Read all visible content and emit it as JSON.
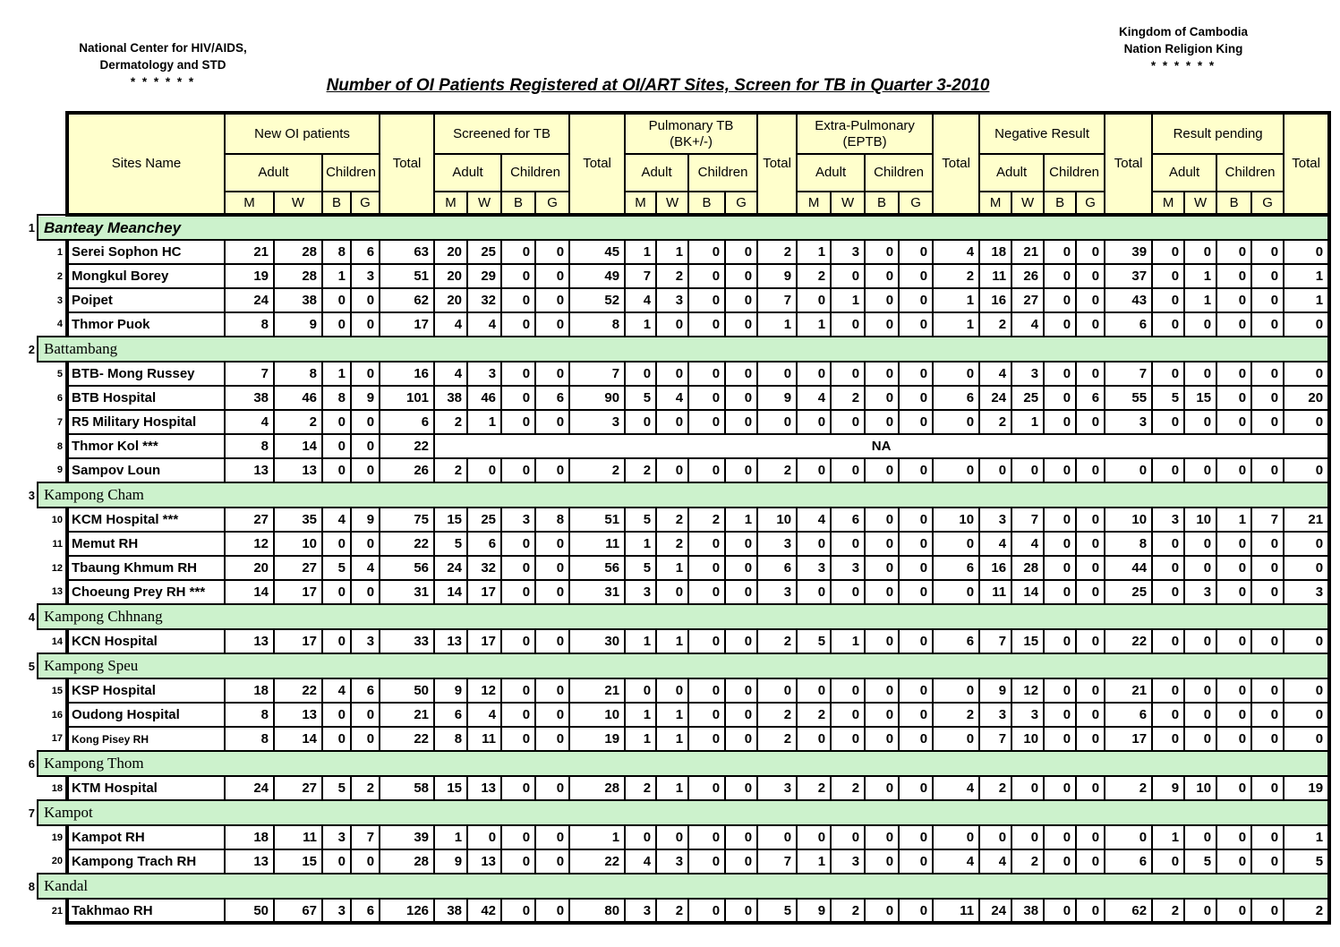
{
  "page": {
    "org": [
      "National Center for HIV/AIDS,",
      "Dermatology and STD",
      "* * * * * *"
    ],
    "kingdom": [
      "Kingdom of Cambodia",
      "Nation Religion King",
      "* * * * * *"
    ],
    "title": "Number of OI Patients Registered at OI/ART Sites, Screen for TB in Quarter 3-2010"
  },
  "table": {
    "sites_header": "Sites Name",
    "total_label": "Total",
    "adult_label": "Adult",
    "children_label": "Children",
    "sex_labels": [
      "M",
      "W",
      "B",
      "G"
    ],
    "segments": [
      {
        "line1": "New OI patients",
        "line2": ""
      },
      {
        "line1": "Screened for TB",
        "line2": ""
      },
      {
        "line1": "Pulmonary TB",
        "line2": "(BK+/-)"
      },
      {
        "line1": "Extra-Pulmonary",
        "line2": "(EPTB)"
      },
      {
        "line1": "Negative Result",
        "line2": ""
      },
      {
        "line1": "Result pending",
        "line2": ""
      }
    ],
    "na_text": "NA",
    "provinces": [
      {
        "num": 1,
        "name": "Banteay Meanchey",
        "style": "italic",
        "sites": [
          {
            "num": 1,
            "name": "Serei Sophon HC",
            "new_oi": [
              21,
              28,
              8,
              6,
              63
            ],
            "screened": [
              20,
              25,
              0,
              0,
              45
            ],
            "ptb": [
              1,
              1,
              0,
              0,
              2
            ],
            "eptb": [
              1,
              3,
              0,
              0,
              4
            ],
            "negative": [
              18,
              21,
              0,
              0,
              39
            ],
            "pending": [
              0,
              0,
              0,
              0,
              0
            ]
          },
          {
            "num": 2,
            "name": "Mongkul Borey",
            "new_oi": [
              19,
              28,
              1,
              3,
              51
            ],
            "screened": [
              20,
              29,
              0,
              0,
              49
            ],
            "ptb": [
              7,
              2,
              0,
              0,
              9
            ],
            "eptb": [
              2,
              0,
              0,
              0,
              2
            ],
            "negative": [
              11,
              26,
              0,
              0,
              37
            ],
            "pending": [
              0,
              1,
              0,
              0,
              1
            ]
          },
          {
            "num": 3,
            "name": "Poipet",
            "new_oi": [
              24,
              38,
              0,
              0,
              62
            ],
            "screened": [
              20,
              32,
              0,
              0,
              52
            ],
            "ptb": [
              4,
              3,
              0,
              0,
              7
            ],
            "eptb": [
              0,
              1,
              0,
              0,
              1
            ],
            "negative": [
              16,
              27,
              0,
              0,
              43
            ],
            "pending": [
              0,
              1,
              0,
              0,
              1
            ]
          },
          {
            "num": 4,
            "name": "Thmor Puok",
            "new_oi": [
              8,
              9,
              0,
              0,
              17
            ],
            "screened": [
              4,
              4,
              0,
              0,
              8
            ],
            "ptb": [
              1,
              0,
              0,
              0,
              1
            ],
            "eptb": [
              1,
              0,
              0,
              0,
              1
            ],
            "negative": [
              2,
              4,
              0,
              0,
              6
            ],
            "pending": [
              0,
              0,
              0,
              0,
              0
            ]
          }
        ]
      },
      {
        "num": 2,
        "name": "Battambang",
        "style": "hand",
        "sites": [
          {
            "num": 5,
            "name": "BTB- Mong Russey",
            "new_oi": [
              7,
              8,
              1,
              0,
              16
            ],
            "screened": [
              4,
              3,
              0,
              0,
              7
            ],
            "ptb": [
              0,
              0,
              0,
              0,
              0
            ],
            "eptb": [
              0,
              0,
              0,
              0,
              0
            ],
            "negative": [
              4,
              3,
              0,
              0,
              7
            ],
            "pending": [
              0,
              0,
              0,
              0,
              0
            ]
          },
          {
            "num": 6,
            "name": "BTB Hospital",
            "new_oi": [
              38,
              46,
              8,
              9,
              101
            ],
            "screened": [
              38,
              46,
              0,
              6,
              90
            ],
            "ptb": [
              5,
              4,
              0,
              0,
              9
            ],
            "eptb": [
              4,
              2,
              0,
              0,
              6
            ],
            "negative": [
              24,
              25,
              0,
              6,
              55
            ],
            "pending": [
              5,
              15,
              0,
              0,
              20
            ]
          },
          {
            "num": 7,
            "name": "R5 Military Hospital",
            "new_oi": [
              4,
              2,
              0,
              0,
              6
            ],
            "screened": [
              2,
              1,
              0,
              0,
              3
            ],
            "ptb": [
              0,
              0,
              0,
              0,
              0
            ],
            "eptb": [
              0,
              0,
              0,
              0,
              0
            ],
            "negative": [
              2,
              1,
              0,
              0,
              3
            ],
            "pending": [
              0,
              0,
              0,
              0,
              0
            ]
          },
          {
            "num": 8,
            "name": "Thmor Kol ***",
            "na": true,
            "new_oi": [
              8,
              14,
              0,
              0,
              22
            ]
          },
          {
            "num": 9,
            "name": "Sampov Loun",
            "new_oi": [
              13,
              13,
              0,
              0,
              26
            ],
            "screened": [
              2,
              0,
              0,
              0,
              2
            ],
            "ptb": [
              2,
              0,
              0,
              0,
              2
            ],
            "eptb": [
              0,
              0,
              0,
              0,
              0
            ],
            "negative": [
              0,
              0,
              0,
              0,
              0
            ],
            "pending": [
              0,
              0,
              0,
              0,
              0
            ]
          }
        ]
      },
      {
        "num": 3,
        "name": "Kampong Cham",
        "style": "hand",
        "sites": [
          {
            "num": 10,
            "name": "KCM Hospital ***",
            "new_oi": [
              27,
              35,
              4,
              9,
              75
            ],
            "screened": [
              15,
              25,
              3,
              8,
              51
            ],
            "ptb": [
              5,
              2,
              2,
              1,
              10
            ],
            "eptb": [
              4,
              6,
              0,
              0,
              10
            ],
            "negative": [
              3,
              7,
              0,
              0,
              10
            ],
            "pending": [
              3,
              10,
              1,
              7,
              21
            ]
          },
          {
            "num": 11,
            "name": "Memut RH",
            "new_oi": [
              12,
              10,
              0,
              0,
              22
            ],
            "screened": [
              5,
              6,
              0,
              0,
              11
            ],
            "ptb": [
              1,
              2,
              0,
              0,
              3
            ],
            "eptb": [
              0,
              0,
              0,
              0,
              0
            ],
            "negative": [
              4,
              4,
              0,
              0,
              8
            ],
            "pending": [
              0,
              0,
              0,
              0,
              0
            ]
          },
          {
            "num": 12,
            "name": "Tbaung Khmum RH",
            "new_oi": [
              20,
              27,
              5,
              4,
              56
            ],
            "screened": [
              24,
              32,
              0,
              0,
              56
            ],
            "ptb": [
              5,
              1,
              0,
              0,
              6
            ],
            "eptb": [
              3,
              3,
              0,
              0,
              6
            ],
            "negative": [
              16,
              28,
              0,
              0,
              44
            ],
            "pending": [
              0,
              0,
              0,
              0,
              0
            ]
          },
          {
            "num": 13,
            "name": "Choeung Prey RH ***",
            "new_oi": [
              14,
              17,
              0,
              0,
              31
            ],
            "screened": [
              14,
              17,
              0,
              0,
              31
            ],
            "ptb": [
              3,
              0,
              0,
              0,
              3
            ],
            "eptb": [
              0,
              0,
              0,
              0,
              0
            ],
            "negative": [
              11,
              14,
              0,
              0,
              25
            ],
            "pending": [
              0,
              3,
              0,
              0,
              3
            ]
          }
        ]
      },
      {
        "num": 4,
        "name": "Kampong Chhnang",
        "style": "hand",
        "sites": [
          {
            "num": 14,
            "name": "KCN Hospital",
            "new_oi": [
              13,
              17,
              0,
              3,
              33
            ],
            "screened": [
              13,
              17,
              0,
              0,
              30
            ],
            "ptb": [
              1,
              1,
              0,
              0,
              2
            ],
            "eptb": [
              5,
              1,
              0,
              0,
              6
            ],
            "negative": [
              7,
              15,
              0,
              0,
              22
            ],
            "pending": [
              0,
              0,
              0,
              0,
              0
            ]
          }
        ]
      },
      {
        "num": 5,
        "name": "Kampong Speu",
        "style": "hand",
        "sites": [
          {
            "num": 15,
            "name": "KSP Hospital",
            "new_oi": [
              18,
              22,
              4,
              6,
              50
            ],
            "screened": [
              9,
              12,
              0,
              0,
              21
            ],
            "ptb": [
              0,
              0,
              0,
              0,
              0
            ],
            "eptb": [
              0,
              0,
              0,
              0,
              0
            ],
            "negative": [
              9,
              12,
              0,
              0,
              21
            ],
            "pending": [
              0,
              0,
              0,
              0,
              0
            ]
          },
          {
            "num": 16,
            "name": "Oudong Hospital",
            "new_oi": [
              8,
              13,
              0,
              0,
              21
            ],
            "screened": [
              6,
              4,
              0,
              0,
              10
            ],
            "ptb": [
              1,
              1,
              0,
              0,
              2
            ],
            "eptb": [
              2,
              0,
              0,
              0,
              2
            ],
            "negative": [
              3,
              3,
              0,
              0,
              6
            ],
            "pending": [
              0,
              0,
              0,
              0,
              0
            ]
          },
          {
            "num": 17,
            "name": "Kong Pisey RH",
            "small": true,
            "new_oi": [
              8,
              14,
              0,
              0,
              22
            ],
            "screened": [
              8,
              11,
              0,
              0,
              19
            ],
            "ptb": [
              1,
              1,
              0,
              0,
              2
            ],
            "eptb": [
              0,
              0,
              0,
              0,
              0
            ],
            "negative": [
              7,
              10,
              0,
              0,
              17
            ],
            "pending": [
              0,
              0,
              0,
              0,
              0
            ]
          }
        ]
      },
      {
        "num": 6,
        "name": "Kampong Thom",
        "style": "hand",
        "sites": [
          {
            "num": 18,
            "name": "KTM Hospital",
            "new_oi": [
              24,
              27,
              5,
              2,
              58
            ],
            "screened": [
              15,
              13,
              0,
              0,
              28
            ],
            "ptb": [
              2,
              1,
              0,
              0,
              3
            ],
            "eptb": [
              2,
              2,
              0,
              0,
              4
            ],
            "negative": [
              2,
              0,
              0,
              0,
              2
            ],
            "pending": [
              9,
              10,
              0,
              0,
              19
            ]
          }
        ]
      },
      {
        "num": 7,
        "name": "Kampot",
        "style": "hand",
        "sites": [
          {
            "num": 19,
            "name": "Kampot RH",
            "new_oi": [
              18,
              11,
              3,
              7,
              39
            ],
            "screened": [
              1,
              0,
              0,
              0,
              1
            ],
            "ptb": [
              0,
              0,
              0,
              0,
              0
            ],
            "eptb": [
              0,
              0,
              0,
              0,
              0
            ],
            "negative": [
              0,
              0,
              0,
              0,
              0
            ],
            "pending": [
              1,
              0,
              0,
              0,
              1
            ]
          },
          {
            "num": 20,
            "name": "Kampong Trach RH",
            "new_oi": [
              13,
              15,
              0,
              0,
              28
            ],
            "screened": [
              9,
              13,
              0,
              0,
              22
            ],
            "ptb": [
              4,
              3,
              0,
              0,
              7
            ],
            "eptb": [
              1,
              3,
              0,
              0,
              4
            ],
            "negative": [
              4,
              2,
              0,
              0,
              6
            ],
            "pending": [
              0,
              5,
              0,
              0,
              5
            ]
          }
        ]
      },
      {
        "num": 8,
        "name": "Kandal",
        "style": "hand",
        "sites": [
          {
            "num": 21,
            "name": "Takhmao RH",
            "new_oi": [
              50,
              67,
              3,
              6,
              126
            ],
            "screened": [
              38,
              42,
              0,
              0,
              80
            ],
            "ptb": [
              3,
              2,
              0,
              0,
              5
            ],
            "eptb": [
              9,
              2,
              0,
              0,
              11
            ],
            "negative": [
              24,
              38,
              0,
              0,
              62
            ],
            "pending": [
              2,
              0,
              0,
              0,
              2
            ]
          }
        ]
      }
    ]
  },
  "colors": {
    "header_bg": "#FFFFCC",
    "group_bg": "#CCF2CC",
    "border": "#000000"
  }
}
